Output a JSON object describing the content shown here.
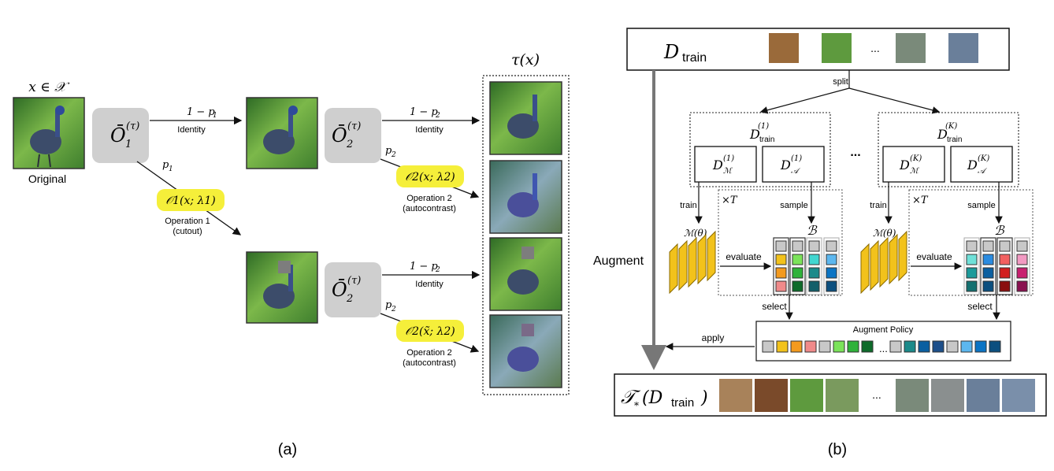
{
  "panel_a": {
    "caption": "(a)",
    "input_set": "x ∈ 𝒳",
    "original_label": "Original",
    "output_label": "τ(x)",
    "subpolicy_op1": {
      "symbol": "Ō",
      "sub": "1",
      "sup": "(τ)"
    },
    "subpolicy_op2_top": {
      "symbol": "Ō",
      "sub": "2",
      "sup": "(τ)"
    },
    "subpolicy_op2_bottom": {
      "symbol": "Ō",
      "sub": "2",
      "sup": "(τ)"
    },
    "branch_top_prob": "1 − p",
    "branch_top_prob_sub": "1",
    "branch_top_label": "Identity",
    "branch_op1_prob": "p",
    "branch_op1_prob_sub": "1",
    "op1_badge": "𝒪1(x; λ1)",
    "op1_label_line1": "Operation 1",
    "op1_label_line2": "(cutout)",
    "op2a_identity_prob": "1 − p",
    "op2a_identity_prob_sub": "2",
    "op2a_identity_label": "Identity",
    "op2a_prob": "p",
    "op2a_prob_sub": "2",
    "op2a_badge": "𝒪2(x; λ2)",
    "op2a_label_line1": "Operation 2",
    "op2a_label_line2": "(autocontrast)",
    "op2b_identity_prob": "1 − p",
    "op2b_identity_prob_sub": "2",
    "op2b_identity_label": "Identity",
    "op2b_prob": "p",
    "op2b_prob_sub": "2",
    "op2b_badge": "𝒪2(x̃; λ2)",
    "op2b_label_line1": "Operation 2",
    "op2b_label_line2": "(autocontrast)"
  },
  "panel_b": {
    "caption": "(b)",
    "dataset_label": "D",
    "dataset_sub": "train",
    "ellipsis": "...",
    "split_label": "split",
    "fold1": {
      "title": "D",
      "title_sub": "train",
      "title_sup": "(1)",
      "model_split": "D",
      "model_sub": "ℳ",
      "model_sup": "(1)",
      "aug_split": "D",
      "aug_sub": "𝒜",
      "aug_sup": "(1)"
    },
    "foldK": {
      "title": "D",
      "title_sub": "train",
      "title_sup": "(K)",
      "model_split": "D",
      "model_sub": "ℳ",
      "model_sup": "(K)",
      "aug_split": "D",
      "aug_sub": "𝒜",
      "aug_sup": "(K)"
    },
    "folds_ellipsis": "...",
    "times_T": "×T",
    "train_label": "train",
    "sample_label": "sample",
    "model_label": "ℳ(θ)",
    "bayes_symbol": "ℬ",
    "evaluate_label": "evaluate",
    "select_label": "select",
    "augment_label": "Augment",
    "policy_title": "Augment Policy",
    "apply_label": "apply",
    "output_symbol": "𝒯",
    "output_star": "*",
    "output_arg_open": "(D",
    "output_arg_sub": "train",
    "output_arg_close": ")",
    "output_ellipsis": "..."
  },
  "colors": {
    "op_box": "#cfcfcf",
    "highlight": "#f5ef3a",
    "model_yellow": "#f2c21b",
    "policy_swatches": [
      "#c8c8c8",
      "#f2c21b",
      "#f39a1e",
      "#f08a8a",
      "#c8c8c8",
      "#7be35a",
      "#2fb23a",
      "#0e6b2a",
      "#c8c8c8",
      "#1b8a8a",
      "#0b5fa0",
      "#1d4f8a",
      "#c8c8c8",
      "#5cb7ef",
      "#0b74c4",
      "#0b4f7f"
    ]
  }
}
